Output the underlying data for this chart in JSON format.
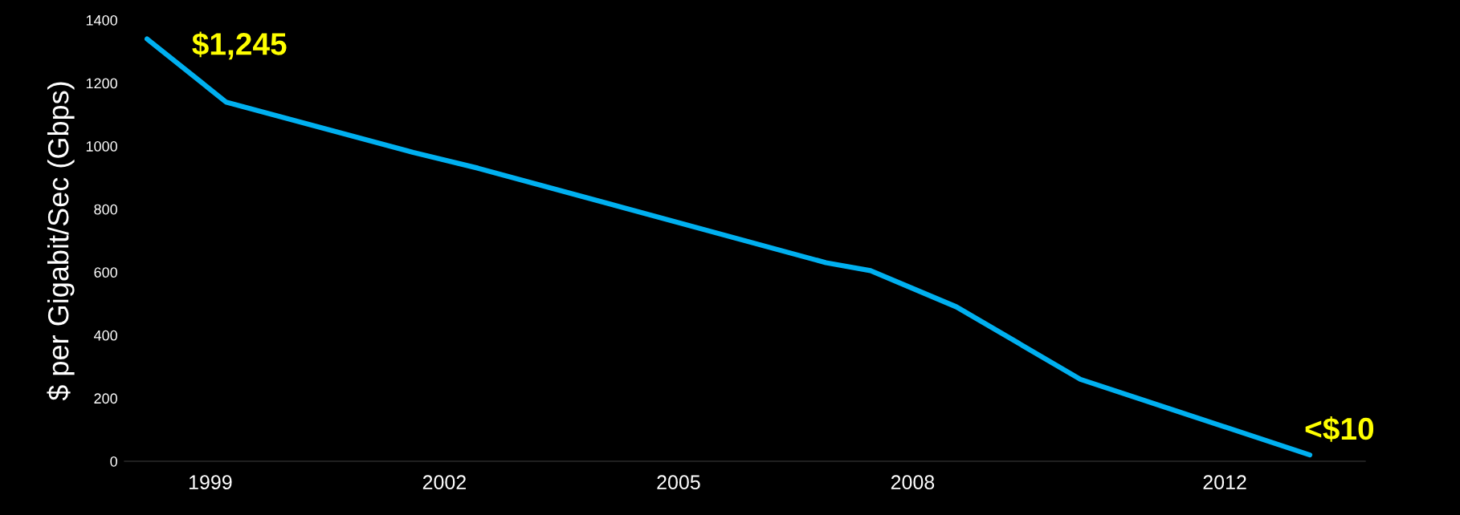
{
  "chart_data": {
    "type": "line",
    "ylabel": "$ per Gigabit/Sec (Gbps)",
    "x": [
      1998.19,
      1999.2,
      2001.6,
      2002.43,
      2006.89,
      2007.46,
      2008.56,
      2010.15,
      2013.09
    ],
    "series": [
      {
        "color": "#00b0f0",
        "values": [
          1340,
          1140,
          980,
          930,
          630,
          605,
          490,
          260,
          20
        ]
      }
    ],
    "xlim": [
      1997.9,
      2013.8
    ],
    "ylim": [
      0,
      1400
    ],
    "xticks": [
      1999,
      2002,
      2005,
      2008,
      2012
    ],
    "yticks": [
      0,
      200,
      400,
      600,
      800,
      1000,
      1200,
      1400
    ],
    "annotations": [
      {
        "text": "$1,245",
        "x": 1998.19,
        "y": 1340
      },
      {
        "text": "<$10",
        "x": 2013.09,
        "y": 20
      }
    ],
    "grid": false,
    "marker": "none",
    "line_style": "solid"
  }
}
